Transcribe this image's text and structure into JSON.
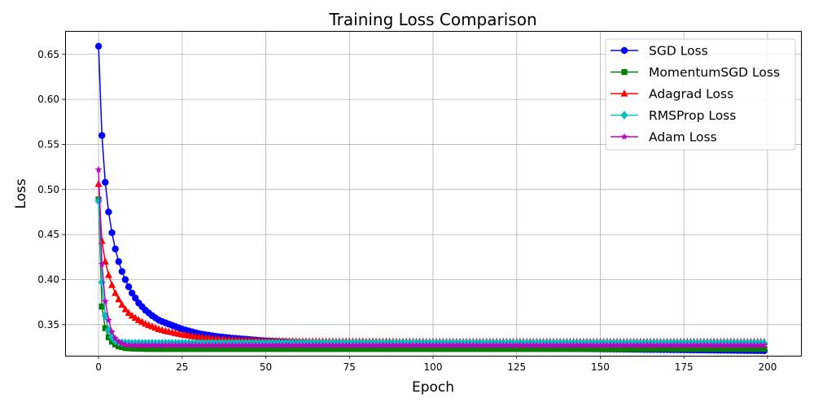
{
  "chart_data": {
    "type": "line",
    "title": "Training Loss Comparison",
    "xlabel": "Epoch",
    "ylabel": "Loss",
    "xlim": [
      -10,
      210
    ],
    "ylim": [
      0.3155,
      0.676
    ],
    "xticks": [
      0,
      25,
      50,
      75,
      100,
      125,
      150,
      175,
      200
    ],
    "yticks": [
      0.35,
      0.4,
      0.45,
      0.5,
      0.55,
      0.6,
      0.65
    ],
    "ytick_labels": [
      "0.35",
      "0.40",
      "0.45",
      "0.50",
      "0.55",
      "0.60",
      "0.65"
    ],
    "grid": true,
    "legend_position": "top-right",
    "epochs": 200,
    "series": [
      {
        "name": "SGD Loss",
        "color": "#0000ff",
        "marker": "circle",
        "points": [
          [
            0,
            0.659
          ],
          [
            1,
            0.56
          ],
          [
            2,
            0.508
          ],
          [
            3,
            0.475
          ],
          [
            4,
            0.452
          ],
          [
            5,
            0.434
          ],
          [
            6,
            0.42
          ],
          [
            7,
            0.409
          ],
          [
            8,
            0.4
          ],
          [
            9,
            0.392
          ],
          [
            10,
            0.385
          ],
          [
            12,
            0.374
          ],
          [
            14,
            0.366
          ],
          [
            16,
            0.36
          ],
          [
            18,
            0.355
          ],
          [
            20,
            0.352
          ],
          [
            25,
            0.345
          ],
          [
            30,
            0.34
          ],
          [
            35,
            0.337
          ],
          [
            40,
            0.335
          ],
          [
            50,
            0.332
          ],
          [
            60,
            0.33
          ],
          [
            75,
            0.328
          ],
          [
            100,
            0.326
          ],
          [
            125,
            0.324
          ],
          [
            150,
            0.323
          ],
          [
            175,
            0.322
          ],
          [
            200,
            0.321
          ]
        ]
      },
      {
        "name": "MomentumSGD Loss",
        "color": "#008000",
        "marker": "square",
        "points": [
          [
            0,
            0.489
          ],
          [
            1,
            0.37
          ],
          [
            2,
            0.346
          ],
          [
            3,
            0.336
          ],
          [
            4,
            0.331
          ],
          [
            5,
            0.328
          ],
          [
            6,
            0.326
          ],
          [
            7,
            0.325
          ],
          [
            8,
            0.324
          ],
          [
            10,
            0.3235
          ],
          [
            15,
            0.323
          ],
          [
            200,
            0.323
          ]
        ]
      },
      {
        "name": "Adagrad Loss",
        "color": "#ff0000",
        "marker": "triangle",
        "points": [
          [
            0,
            0.506
          ],
          [
            1,
            0.443
          ],
          [
            2,
            0.42
          ],
          [
            3,
            0.405
          ],
          [
            4,
            0.394
          ],
          [
            5,
            0.385
          ],
          [
            6,
            0.378
          ],
          [
            7,
            0.372
          ],
          [
            8,
            0.367
          ],
          [
            9,
            0.363
          ],
          [
            10,
            0.36
          ],
          [
            12,
            0.355
          ],
          [
            14,
            0.351
          ],
          [
            16,
            0.348
          ],
          [
            18,
            0.345
          ],
          [
            20,
            0.343
          ],
          [
            25,
            0.339
          ],
          [
            30,
            0.336
          ],
          [
            35,
            0.334
          ],
          [
            40,
            0.333
          ],
          [
            50,
            0.332
          ],
          [
            60,
            0.3315
          ],
          [
            100,
            0.331
          ],
          [
            200,
            0.331
          ]
        ]
      },
      {
        "name": "RMSProp Loss",
        "color": "#00bfbf",
        "marker": "diamond",
        "points": [
          [
            0,
            0.487
          ],
          [
            1,
            0.397
          ],
          [
            2,
            0.36
          ],
          [
            3,
            0.344
          ],
          [
            4,
            0.336
          ],
          [
            5,
            0.332
          ],
          [
            6,
            0.3305
          ],
          [
            7,
            0.33
          ],
          [
            10,
            0.3295
          ],
          [
            200,
            0.3295
          ]
        ]
      },
      {
        "name": "Adam Loss",
        "color": "#bf00bf",
        "marker": "star",
        "points": [
          [
            0,
            0.522
          ],
          [
            1,
            0.417
          ],
          [
            2,
            0.376
          ],
          [
            3,
            0.355
          ],
          [
            4,
            0.342
          ],
          [
            5,
            0.335
          ],
          [
            6,
            0.331
          ],
          [
            7,
            0.329
          ],
          [
            8,
            0.3275
          ],
          [
            10,
            0.327
          ],
          [
            200,
            0.327
          ]
        ]
      }
    ]
  }
}
